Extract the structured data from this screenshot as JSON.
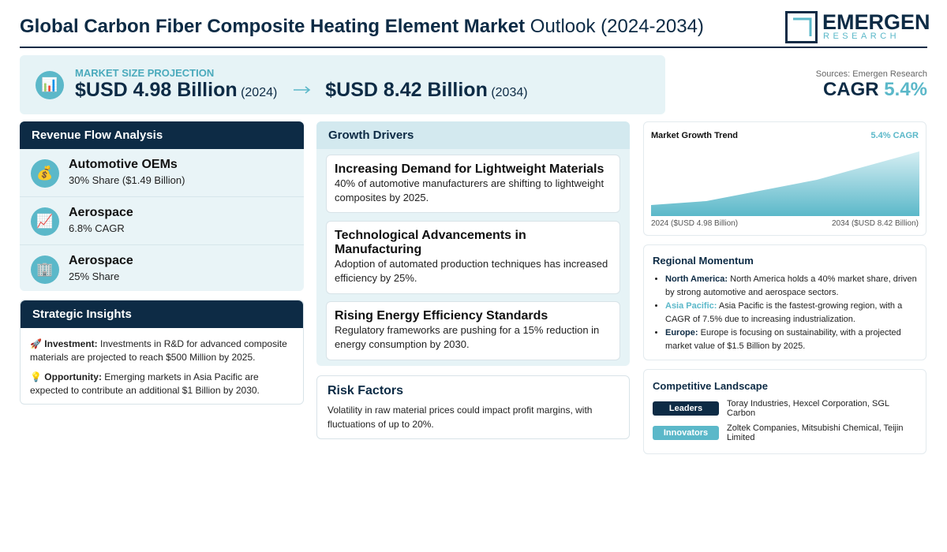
{
  "header": {
    "title_bold": "Global Carbon Fiber Composite Heating Element Market",
    "title_rest": "Outlook (2024-2034)",
    "logo": {
      "name": "EMERGEN",
      "tagline": "RESEARCH"
    }
  },
  "projection": {
    "icon": "📊",
    "label": "MARKET SIZE PROJECTION",
    "start": {
      "value": "$USD 4.98 Billion",
      "year": "(2024)"
    },
    "end": {
      "value": "$USD 8.42 Billion",
      "year": "(2034)"
    }
  },
  "sources": "Sources: Emergen Research",
  "cagr": {
    "label": "CAGR",
    "value": "5.4%"
  },
  "revenue_flow": {
    "title": "Revenue Flow Analysis",
    "items": [
      {
        "icon": "💰",
        "name": "Automotive OEMs",
        "detail": "30% Share ($1.49 Billion)"
      },
      {
        "icon": "📈",
        "name": "Aerospace",
        "detail": "6.8% CAGR"
      },
      {
        "icon": "🏢",
        "name": "Aerospace",
        "detail": "25% Share"
      }
    ]
  },
  "strategic_insights": {
    "title": "Strategic Insights",
    "items": [
      {
        "icon": "🚀",
        "label": "Investment:",
        "text": "Investments in R&D for advanced composite materials are projected to reach $500 Million by 2025."
      },
      {
        "icon": "💡",
        "label": "Opportunity:",
        "text": "Emerging markets in Asia Pacific are expected to contribute an additional $1 Billion by 2030."
      }
    ]
  },
  "growth_drivers": {
    "title": "Growth Drivers",
    "items": [
      {
        "title": "Increasing Demand for Lightweight Materials",
        "text": "40% of automotive manufacturers are shifting to lightweight composites by 2025."
      },
      {
        "title": "Technological Advancements in Manufacturing",
        "text": "Adoption of automated production techniques has increased efficiency by 25%."
      },
      {
        "title": "Rising Energy Efficiency Standards",
        "text": "Regulatory frameworks are pushing for a 15% reduction in energy consumption by 2030."
      }
    ]
  },
  "risk_factors": {
    "title": "Risk Factors",
    "text": "Volatility in raw material prices could impact profit margins, with fluctuations of up to 20%."
  },
  "market_trend": {
    "title": "Market Growth Trend",
    "badge": "5.4% CAGR",
    "start_label": "2024 ($USD 4.98 Billion)",
    "end_label": "2034 ($USD 8.42 Billion)"
  },
  "regional_momentum": {
    "title": "Regional Momentum",
    "items": [
      {
        "region": "North America:",
        "text": "North America holds a 40% market share, driven by strong automotive and aerospace sectors."
      },
      {
        "region": "Asia Pacific:",
        "text": "Asia Pacific is the fastest-growing region, with a CAGR of 7.5% due to increasing industrialization."
      },
      {
        "region": "Europe:",
        "text": "Europe is focusing on sustainability, with a projected market value of $1.5 Billion by 2025."
      }
    ]
  },
  "competitive_landscape": {
    "title": "Competitive Landscape",
    "rows": [
      {
        "tag": "Leaders",
        "text": "Toray Industries, Hexcel Corporation, SGL Carbon"
      },
      {
        "tag": "Innovators",
        "text": "Zoltek Companies, Mitsubishi Chemical, Teijin Limited"
      }
    ]
  }
}
